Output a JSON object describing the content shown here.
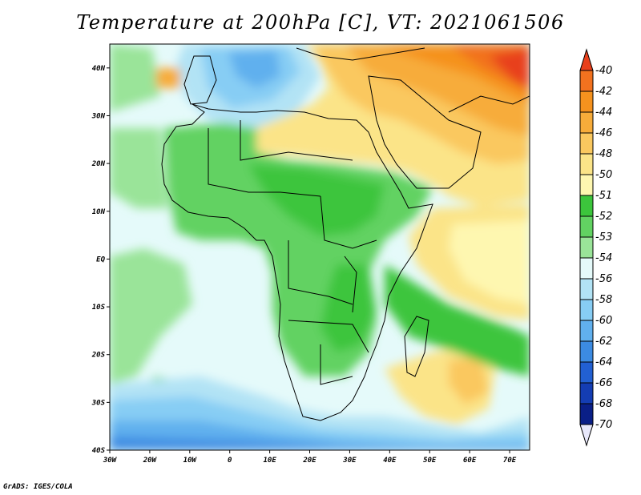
{
  "title": "Temperature at 200hPa [C], VT: 2021061506",
  "credit": "GrADS: IGES/COLA",
  "lat_labels": [
    "40N",
    "30N",
    "20N",
    "10N",
    "EQ",
    "10S",
    "20S",
    "30S",
    "40S"
  ],
  "lon_labels": [
    "30W",
    "20W",
    "10W",
    "0",
    "10E",
    "20E",
    "30E",
    "40E",
    "50E",
    "60E",
    "70E"
  ],
  "colorbar": {
    "labels": [
      "-40",
      "-42",
      "-44",
      "-46",
      "-48",
      "-50",
      "-51",
      "-52",
      "-53",
      "-54",
      "-56",
      "-58",
      "-60",
      "-62",
      "-64",
      "-66",
      "-68",
      "-70"
    ],
    "colors": [
      "#e8401c",
      "#f2721f",
      "#f5921e",
      "#f7ac3a",
      "#fac85f",
      "#fbe488",
      "#fef7b0",
      "#3cc53c",
      "#62d262",
      "#9ae499",
      "#e5fafa",
      "#b2e3f5",
      "#87cdf4",
      "#61b0ee",
      "#3c8be2",
      "#2260d2",
      "#143db3",
      "#0a1f87",
      "#e8e8fb"
    ]
  },
  "map": {
    "lon_range": [
      -30,
      75
    ],
    "lat_range": [
      -40,
      45
    ],
    "field": "temperature",
    "level": "200hPa",
    "units": "C"
  }
}
